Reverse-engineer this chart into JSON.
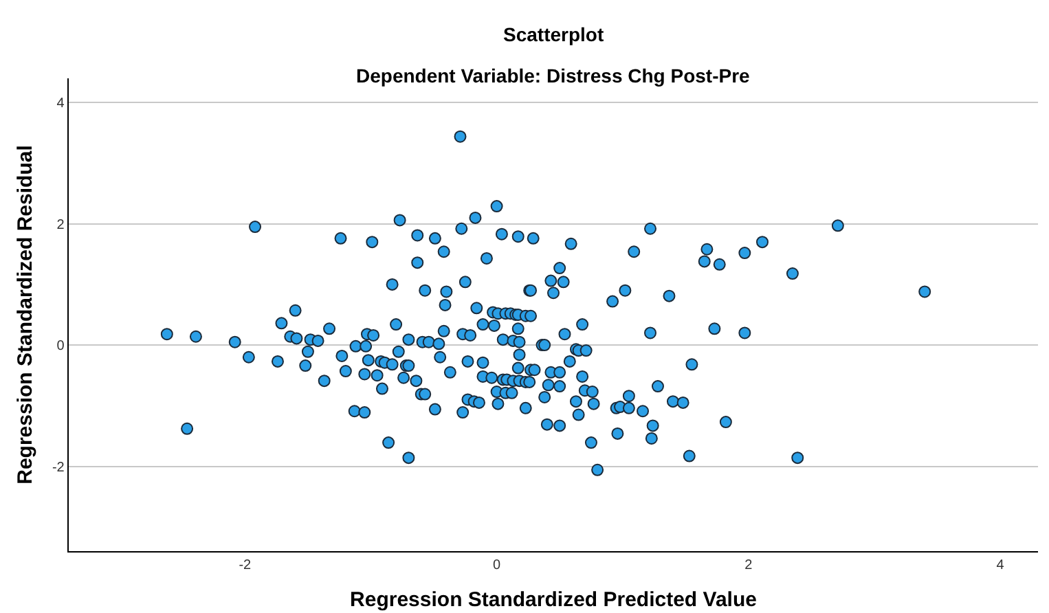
{
  "chart_data": {
    "type": "scatter",
    "title": "Scatterplot",
    "subtitle": "Dependent Variable: Distress Chg Post-Pre",
    "xlabel": "Regression Standardized Predicted Value",
    "ylabel": "Regression Standardized Residual",
    "xlim": [
      -3.4,
      4.3
    ],
    "ylim": [
      -3.4,
      4.4
    ],
    "xticks": [
      -2,
      0,
      2,
      4
    ],
    "yticks": [
      -2,
      0,
      2,
      4
    ],
    "grid": "y",
    "marker": "circle",
    "series": [
      {
        "color": "#2b9fe6",
        "x": [
          -2.62,
          -2.39,
          -2.46,
          -2.08,
          -1.97,
          -1.92,
          -1.74,
          -1.71,
          -1.6,
          -1.64,
          -1.59,
          -1.48,
          -1.42,
          -1.33,
          -1.5,
          -1.52,
          -1.37,
          -1.24,
          -1.23,
          -1.2,
          -1.13,
          -1.05,
          -1.03,
          -0.98,
          -1.12,
          -1.04,
          -0.99,
          -1.02,
          -1.05,
          -0.92,
          -0.89,
          -0.95,
          -0.83,
          -0.91,
          -0.83,
          -0.8,
          -0.77,
          -0.78,
          -0.7,
          -0.72,
          -0.74,
          -0.86,
          -0.7,
          -0.7,
          -0.64,
          -0.59,
          -0.54,
          -0.46,
          -0.63,
          -0.63,
          -0.49,
          -0.42,
          -0.57,
          -0.4,
          -0.41,
          -0.29,
          -0.28,
          -0.17,
          0,
          -0.25,
          -0.08,
          0.04,
          0.17,
          0.29,
          0.59,
          0.5,
          0.43,
          0.53,
          0.26,
          0.27,
          0.45,
          -0.16,
          -0.03,
          0.01,
          0.07,
          0.11,
          0.15,
          0.17,
          0.23,
          0.27,
          -0.11,
          -0.02,
          0.17,
          -0.42,
          -0.27,
          -0.21,
          0.54,
          0.68,
          0.05,
          0.13,
          0.18,
          0.36,
          0.38,
          0.63,
          0.65,
          0.71,
          0.18,
          -0.45,
          -0.23,
          -0.11,
          0.58,
          0.17,
          0.27,
          0.3,
          0.43,
          0.5,
          -0.37,
          -0.11,
          -0.04,
          0.05,
          0.08,
          0.13,
          0.18,
          0.23,
          0.26,
          0.68,
          0.41,
          0.5,
          0,
          0.07,
          0.12,
          0.7,
          0.76,
          -0.6,
          -0.57,
          0.38,
          -0.23,
          -0.18,
          -0.14,
          0.63,
          0.77,
          -0.49,
          0.01,
          0.23,
          -0.27,
          0.65,
          0.95,
          0.4,
          0.5,
          0.75,
          0.8,
          0.96,
          0.92,
          1.22,
          2.71,
          1.09,
          1.67,
          1.65,
          1.77,
          1.97,
          2.11,
          2.35,
          1.02,
          1.37,
          1.22,
          1.73,
          1.97,
          1.55,
          1.28,
          1.05,
          0.98,
          1.05,
          1.16,
          1.4,
          1.48,
          1.24,
          1.23,
          1.82,
          1.53,
          2.39,
          3.4
        ],
        "values": [
          0.18,
          0.14,
          -1.38,
          0.05,
          -0.2,
          1.95,
          -0.27,
          0.36,
          0.57,
          0.14,
          0.11,
          0.09,
          0.07,
          0.27,
          -0.11,
          -0.34,
          -0.59,
          1.76,
          -0.18,
          -0.43,
          -1.09,
          -1.11,
          0.18,
          0.16,
          -0.02,
          -0.02,
          1.7,
          -0.25,
          -0.48,
          -0.27,
          -0.29,
          -0.5,
          -0.32,
          -0.72,
          1,
          0.34,
          2.06,
          -0.11,
          0.09,
          -0.34,
          -0.54,
          -1.61,
          -1.86,
          -0.34,
          -0.59,
          0.05,
          0.05,
          0.02,
          1.81,
          1.36,
          1.76,
          1.54,
          0.9,
          0.88,
          0.66,
          3.44,
          1.92,
          2.1,
          2.29,
          1.04,
          1.43,
          1.83,
          1.79,
          1.76,
          1.67,
          1.27,
          1.06,
          1.04,
          0.9,
          0.9,
          0.86,
          0.61,
          0.54,
          0.52,
          0.52,
          0.52,
          0.5,
          0.5,
          0.48,
          0.48,
          0.34,
          0.32,
          0.27,
          0.23,
          0.18,
          0.16,
          0.18,
          0.34,
          0.09,
          0.07,
          0.05,
          0,
          0,
          -0.07,
          -0.09,
          -0.09,
          -0.16,
          -0.2,
          -0.27,
          -0.29,
          -0.27,
          -0.38,
          -0.41,
          -0.41,
          -0.45,
          -0.45,
          -0.45,
          -0.52,
          -0.54,
          -0.57,
          -0.57,
          -0.59,
          -0.59,
          -0.61,
          -0.61,
          -0.52,
          -0.66,
          -0.68,
          -0.77,
          -0.79,
          -0.79,
          -0.75,
          -0.77,
          -0.81,
          -0.81,
          -0.86,
          -0.9,
          -0.93,
          -0.95,
          -0.93,
          -0.97,
          -1.06,
          -0.97,
          -1.04,
          -1.11,
          -1.15,
          -1.04,
          -1.31,
          -1.33,
          -1.61,
          -2.06,
          -1.46,
          0.72,
          1.92,
          1.97,
          1.54,
          1.58,
          1.38,
          1.33,
          1.52,
          1.7,
          1.18,
          0.9,
          0.81,
          0.2,
          0.27,
          0.2,
          -0.32,
          -0.68,
          -0.84,
          -1.02,
          -1.04,
          -1.09,
          -0.93,
          -0.95,
          -1.33,
          -1.54,
          -1.27,
          -1.83,
          -1.86,
          0.88
        ]
      }
    ]
  }
}
